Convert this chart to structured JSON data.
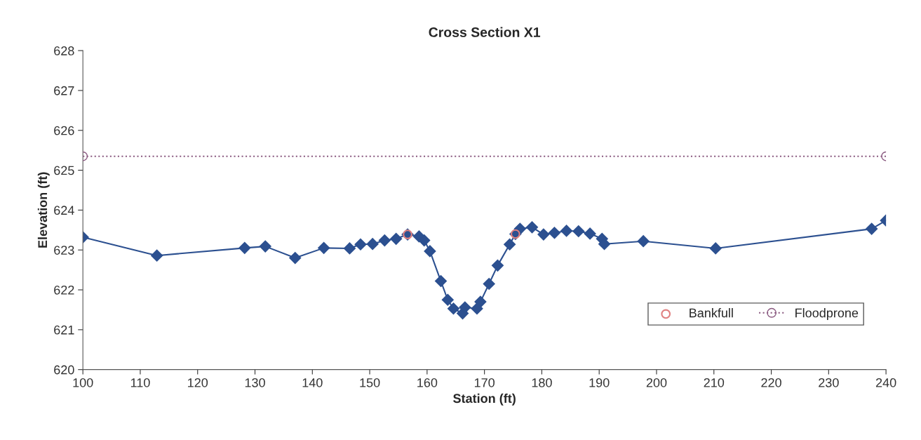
{
  "chart_data": {
    "type": "line",
    "title": "Cross Section X1",
    "xlabel": "Station (ft)",
    "ylabel": "Elevation (ft)",
    "xlim": [
      100,
      240
    ],
    "xticks": [
      100,
      110,
      120,
      130,
      140,
      150,
      160,
      170,
      180,
      190,
      200,
      210,
      220,
      230,
      240
    ],
    "ylim": [
      620,
      628
    ],
    "yticks": [
      620,
      621,
      622,
      623,
      624,
      625,
      626,
      627,
      628
    ],
    "grid": false,
    "legend": "bottom right",
    "series": [
      {
        "color": "#2c5090",
        "marker": "diamond",
        "line_style": "solid",
        "x": [
          100,
          112.9,
          128.2,
          131.8,
          137.0,
          142.0,
          146.5,
          148.4,
          150.5,
          152.6,
          154.6,
          156.6,
          158.6,
          159.5,
          160.5,
          162.4,
          163.6,
          164.6,
          166.2,
          166.6,
          168.7,
          169.3,
          170.8,
          172.3,
          174.4,
          175.4,
          176.2,
          178.3,
          180.3,
          182.2,
          184.3,
          186.4,
          188.4,
          190.5,
          190.9,
          197.7,
          210.3,
          237.5,
          240
        ],
        "values": [
          623.32,
          622.86,
          623.05,
          623.09,
          622.8,
          623.05,
          623.04,
          623.14,
          623.15,
          623.24,
          623.28,
          623.39,
          623.34,
          623.24,
          622.97,
          622.22,
          621.75,
          621.53,
          621.41,
          621.56,
          621.53,
          621.7,
          622.15,
          622.61,
          623.14,
          623.4,
          623.53,
          623.57,
          623.39,
          623.43,
          623.48,
          623.47,
          623.41,
          623.28,
          623.15,
          623.22,
          623.04,
          623.53,
          623.74
        ]
      },
      {
        "type": "scatter",
        "name": "Bankfull",
        "color": "#e08080",
        "marker": "circle",
        "x": [
          156.6,
          175.4
        ],
        "values": [
          623.39,
          623.4
        ]
      },
      {
        "name": "Floodprone",
        "color": "#8a5a80",
        "marker": "circle",
        "line_style": "dotted",
        "x": [
          100,
          240
        ],
        "values": [
          625.35,
          625.35
        ]
      }
    ]
  }
}
